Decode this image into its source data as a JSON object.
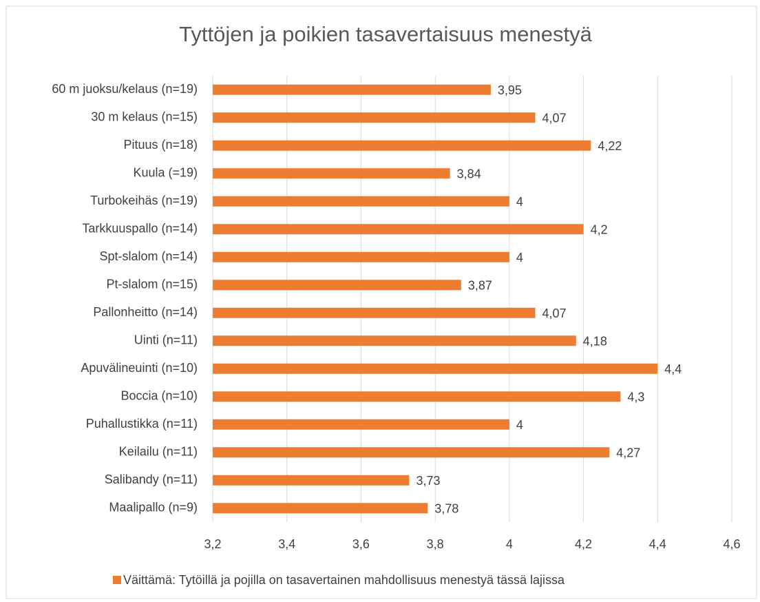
{
  "chart_data": {
    "type": "bar",
    "orientation": "horizontal",
    "title": "Tyttöjen ja poikien tasavertaisuus menestyä",
    "categories": [
      "60 m juoksu/kelaus (n=19)",
      "30 m kelaus (n=15)",
      "Pituus (n=18)",
      "Kuula (=19)",
      "Turbokeihäs (n=19)",
      "Tarkkuuspallo (n=14)",
      "Spt-slalom (n=14)",
      "Pt-slalom (n=15)",
      "Pallonheitto (n=14)",
      "Uinti (n=11)",
      "Apuvälineuinti (n=10)",
      "Boccia (n=10)",
      "Puhallustikka (n=11)",
      "Keilailu (n=11)",
      "Salibandy (n=11)",
      "Maalipallo (n=9)"
    ],
    "series": [
      {
        "name": "Väittämä: Tytöillä ja pojilla on tasavertainen mahdollisuus menestyä tässä lajissa",
        "color": "#ed7d31",
        "values": [
          3.95,
          4.07,
          4.22,
          3.84,
          4,
          4.2,
          4,
          3.87,
          4.07,
          4.18,
          4.4,
          4.3,
          4,
          4.27,
          3.73,
          3.78
        ],
        "value_labels": [
          "3,95",
          "4,07",
          "4,22",
          "3,84",
          "4",
          "4,2",
          "4",
          "3,87",
          "4,07",
          "4,18",
          "4,4",
          "4,3",
          "4",
          "4,27",
          "3,73",
          "3,78"
        ]
      }
    ],
    "xlim": [
      3.2,
      4.6
    ],
    "xticks": [
      {
        "value": 3.2,
        "label": "3,2"
      },
      {
        "value": 3.4,
        "label": "3,4"
      },
      {
        "value": 3.6,
        "label": "3,6"
      },
      {
        "value": 3.8,
        "label": "3,8"
      },
      4,
      {
        "value": 4.2,
        "label": "4,2"
      },
      {
        "value": 4.4,
        "label": "4,4"
      },
      {
        "value": 4.6,
        "label": "4,6"
      }
    ],
    "grid": true,
    "legend": "bottom"
  }
}
